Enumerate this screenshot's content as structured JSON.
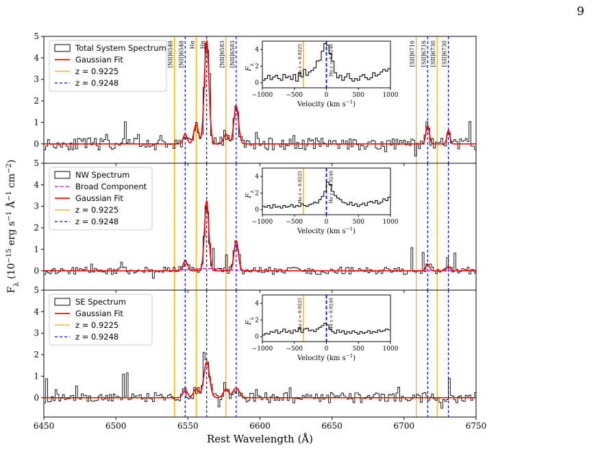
{
  "page_number": "9",
  "chart_data": {
    "type": "line",
    "xlabel": "Rest Wavelength (Å)",
    "ylabel_main": "F",
    "ylabel_sub": "λ",
    "ylabel_units": "(10",
    "ylabel_exp": "−15",
    "ylabel_tail": "erg s",
    "ylabel_tail_exp": "−1",
    "ylabel_ang": "Å",
    "ylabel_ang_exp": "−1",
    "ylabel_cm": "cm",
    "ylabel_cm_exp": "−2",
    "ylabel_close": ")",
    "xlim": [
      6450,
      6750
    ],
    "xticks": [
      "6450",
      "6500",
      "6550",
      "6600",
      "6650",
      "6700",
      "6750"
    ],
    "ylim": [
      -0.9,
      5
    ],
    "yticks": [
      "0",
      "1",
      "2",
      "3",
      "4",
      "5"
    ],
    "colors": {
      "data": "#000000",
      "fit": "#ff0000",
      "broad": "#bf00bf",
      "z1": "#ffa500",
      "z2": "#0000ff"
    },
    "z1_lines": [
      6540.6,
      6555.7,
      6576.4,
      6708.5,
      6723.0
    ],
    "z2_lines": [
      6548.1,
      6563.0,
      6583.5,
      6716.4,
      6730.8
    ],
    "line_labels": [
      {
        "text": "[NII]6548",
        "x": 6540.6,
        "color": "orange"
      },
      {
        "text": "[NII]6548",
        "x": 6548.1,
        "color": "blue"
      },
      {
        "text": "Hα",
        "x": 6555.7,
        "color": "orange"
      },
      {
        "text": "Hα",
        "x": 6563.0,
        "color": "blue"
      },
      {
        "text": "[NII]6583",
        "x": 6576.4,
        "color": "orange"
      },
      {
        "text": "[NII]6583",
        "x": 6583.5,
        "color": "blue"
      },
      {
        "text": "[SII]6716",
        "x": 6708.5,
        "color": "orange"
      },
      {
        "text": "[SII]6716",
        "x": 6716.4,
        "color": "blue"
      },
      {
        "text": "[SII]6730",
        "x": 6723.0,
        "color": "orange"
      },
      {
        "text": "[SII]6730",
        "x": 6730.8,
        "color": "blue"
      }
    ],
    "panels": [
      {
        "name": "Total System Spectrum",
        "legend": [
          "Total System Spectrum",
          "Gaussian Fit",
          "z = 0.9225",
          "z = 0.9248"
        ],
        "fit_components": [
          {
            "center": 6548.1,
            "amp": 0.45,
            "sigma": 1.4
          },
          {
            "center": 6555.7,
            "amp": 0.9,
            "sigma": 1.6
          },
          {
            "center": 6563.0,
            "amp": 4.8,
            "sigma": 1.6
          },
          {
            "center": 6576.4,
            "amp": 0.45,
            "sigma": 1.6
          },
          {
            "center": 6583.5,
            "amp": 1.75,
            "sigma": 1.6
          },
          {
            "center": 6716.4,
            "amp": 0.85,
            "sigma": 1.2
          },
          {
            "center": 6730.8,
            "amp": 0.65,
            "sigma": 1.0
          }
        ],
        "noise_seed": 11,
        "noise_amp": 0.28,
        "inset": {
          "xlim": [
            -1000,
            1000
          ],
          "xticks": [
            "−1000",
            "−500",
            "0",
            "500",
            "1000"
          ],
          "ylim": [
            -0.6,
            5
          ],
          "yticks": [
            "0",
            "2",
            "4"
          ],
          "xlabel": "Velocity (km s",
          "xlabel_exp": "−1",
          "xlabel_close": ")",
          "ylabel": "F",
          "ylabel_sub": "λ",
          "z1_label": "Hα z = 0.9225",
          "z2_label": "Hα z = 0.9248",
          "z1_v": -360,
          "velocity": [
            -1000,
            -960,
            -920,
            -880,
            -840,
            -800,
            -760,
            -720,
            -680,
            -640,
            -600,
            -560,
            -520,
            -480,
            -440,
            -400,
            -360,
            -320,
            -280,
            -240,
            -200,
            -160,
            -120,
            -80,
            -40,
            0,
            40,
            80,
            120,
            160,
            200,
            240,
            280,
            320,
            360,
            400,
            440,
            480,
            520,
            560,
            600,
            640,
            680,
            720,
            760,
            800,
            840,
            880,
            920,
            960
          ],
          "flux": [
            0.3,
            0.5,
            0.9,
            0.4,
            0.7,
            0.9,
            0.5,
            0.3,
            1.0,
            0.6,
            0.8,
            0.4,
            1.0,
            0.2,
            1.2,
            0.7,
            1.6,
            0.9,
            1.3,
            1.5,
            1.8,
            2.6,
            2.7,
            3.8,
            4.7,
            4.5,
            3.5,
            2.6,
            1.2,
            0.6,
            0.9,
            0.3,
            0.7,
            1.1,
            0.5,
            0.2,
            0.5,
            0.3,
            0.8,
            1.0,
            0.6,
            0.4,
            0.6,
            1.2,
            0.8,
            1.0,
            1.3,
            1.6,
            1.4,
            1.7
          ]
        }
      },
      {
        "name": "NW Spectrum",
        "legend": [
          "NW Spectrum",
          "Broad Component",
          "Gaussian Fit",
          "z = 0.9225",
          "z = 0.9248"
        ],
        "fit_components": [
          {
            "center": 6548.1,
            "amp": 0.45,
            "sigma": 1.6
          },
          {
            "center": 6563.0,
            "amp": 3.25,
            "sigma": 1.5
          },
          {
            "center": 6583.5,
            "amp": 1.4,
            "sigma": 1.5
          },
          {
            "center": 6716.4,
            "amp": 0.3,
            "sigma": 1.3
          },
          {
            "center": 6730.8,
            "amp": 0.2,
            "sigma": 1.2
          }
        ],
        "broad_component": {
          "center": 6563.0,
          "amp": 0.1,
          "sigma": 12
        },
        "noise_seed": 23,
        "noise_amp": 0.17,
        "inset": {
          "xlim": [
            -1000,
            1000
          ],
          "xticks": [
            "−1000",
            "−500",
            "0",
            "500",
            "1000"
          ],
          "ylim": [
            -0.6,
            5
          ],
          "yticks": [
            "0",
            "2",
            "4"
          ],
          "xlabel": "Velocity (km s",
          "xlabel_exp": "−1",
          "xlabel_close": ")",
          "ylabel": "F",
          "ylabel_sub": "λ",
          "z1_label": "Hα z = 0.9225",
          "z2_label": "Hα z = 0.9248",
          "z1_v": -360,
          "velocity": [
            -1000,
            -960,
            -920,
            -880,
            -840,
            -800,
            -760,
            -720,
            -680,
            -640,
            -600,
            -560,
            -520,
            -480,
            -440,
            -400,
            -360,
            -320,
            -280,
            -240,
            -200,
            -160,
            -120,
            -80,
            -40,
            0,
            40,
            80,
            120,
            160,
            200,
            240,
            280,
            320,
            360,
            400,
            440,
            480,
            520,
            560,
            600,
            640,
            680,
            720,
            760,
            800,
            840,
            880,
            920,
            960
          ],
          "flux": [
            0.4,
            0.3,
            0.5,
            0.2,
            0.6,
            0.3,
            0.4,
            0.2,
            0.5,
            0.3,
            0.4,
            0.6,
            0.3,
            0.5,
            0.4,
            0.7,
            0.5,
            0.4,
            0.6,
            0.7,
            0.9,
            0.8,
            1.2,
            1.6,
            2.2,
            3.3,
            3.0,
            2.2,
            1.7,
            1.4,
            1.2,
            0.9,
            0.8,
            0.6,
            0.9,
            0.5,
            0.7,
            0.4,
            0.6,
            0.8,
            0.5,
            0.9,
            1.0,
            0.8,
            1.1,
            0.7,
            0.9,
            1.3,
            1.1,
            1.5
          ]
        }
      },
      {
        "name": "SE Spectrum",
        "legend": [
          "SE Spectrum",
          "Gaussian Fit",
          "z = 0.9225",
          "z = 0.9248"
        ],
        "fit_components": [
          {
            "center": 6548.1,
            "amp": 0.35,
            "sigma": 1.6
          },
          {
            "center": 6555.7,
            "amp": 0.4,
            "sigma": 1.8
          },
          {
            "center": 6563.0,
            "amp": 1.65,
            "sigma": 2.0
          },
          {
            "center": 6576.4,
            "amp": 0.4,
            "sigma": 1.8
          },
          {
            "center": 6583.5,
            "amp": 0.45,
            "sigma": 2.2
          }
        ],
        "noise_seed": 37,
        "noise_amp": 0.24,
        "inset": {
          "xlim": [
            -1000,
            1000
          ],
          "xticks": [
            "−1000",
            "−500",
            "0",
            "500",
            "1000"
          ],
          "ylim": [
            -0.6,
            5
          ],
          "yticks": [
            "0",
            "2",
            "4"
          ],
          "xlabel": "Velocity (km s",
          "xlabel_exp": "−1",
          "xlabel_close": ")",
          "ylabel": "F",
          "ylabel_sub": "λ",
          "z1_label": "Hα z = 0.9225",
          "z2_label": "Hα z = 0.9248",
          "z1_v": -360,
          "velocity": [
            -1000,
            -960,
            -920,
            -880,
            -840,
            -800,
            -760,
            -720,
            -680,
            -640,
            -600,
            -560,
            -520,
            -480,
            -440,
            -400,
            -360,
            -320,
            -280,
            -240,
            -200,
            -160,
            -120,
            -80,
            -40,
            0,
            40,
            80,
            120,
            160,
            200,
            240,
            280,
            320,
            360,
            400,
            440,
            480,
            520,
            560,
            600,
            640,
            680,
            720,
            760,
            800,
            840,
            880,
            920,
            960
          ],
          "flux": [
            0.2,
            0.4,
            0.3,
            0.6,
            0.5,
            0.8,
            0.4,
            0.6,
            0.9,
            0.5,
            0.7,
            0.4,
            0.8,
            0.6,
            1.0,
            0.5,
            0.9,
            1.0,
            0.7,
            0.8,
            0.6,
            0.9,
            1.1,
            1.3,
            1.6,
            1.4,
            0.9,
            0.6,
            0.4,
            0.8,
            0.5,
            0.7,
            0.3,
            0.6,
            0.4,
            0.7,
            0.5,
            0.3,
            0.6,
            0.4,
            0.5,
            0.7,
            0.4,
            0.6,
            0.5,
            0.8,
            0.6,
            0.7,
            0.9,
            0.8
          ]
        }
      }
    ]
  }
}
